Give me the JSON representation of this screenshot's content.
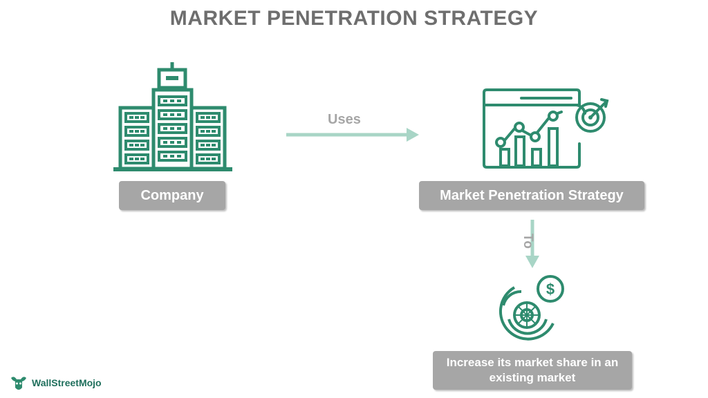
{
  "title": "MARKET PENETRATION STRATEGY",
  "colors": {
    "teal": "#2e8b6e",
    "light_teal": "#a8d5c6",
    "gray": "#a6a6a6",
    "title_gray": "#6e6e6e"
  },
  "nodes": {
    "company": {
      "label": "Company",
      "icon": "building-icon"
    },
    "strategy": {
      "label": "Market Penetration Strategy",
      "icon": "analytics-dashboard-icon"
    },
    "result": {
      "label_line1": "Increase its market share in an",
      "label_line2": "existing market",
      "icon": "market-share-dollar-icon"
    }
  },
  "edges": {
    "uses": {
      "label": "Uses"
    },
    "to": {
      "label": "To"
    }
  },
  "logo": {
    "text": "WallStreetMojo"
  }
}
